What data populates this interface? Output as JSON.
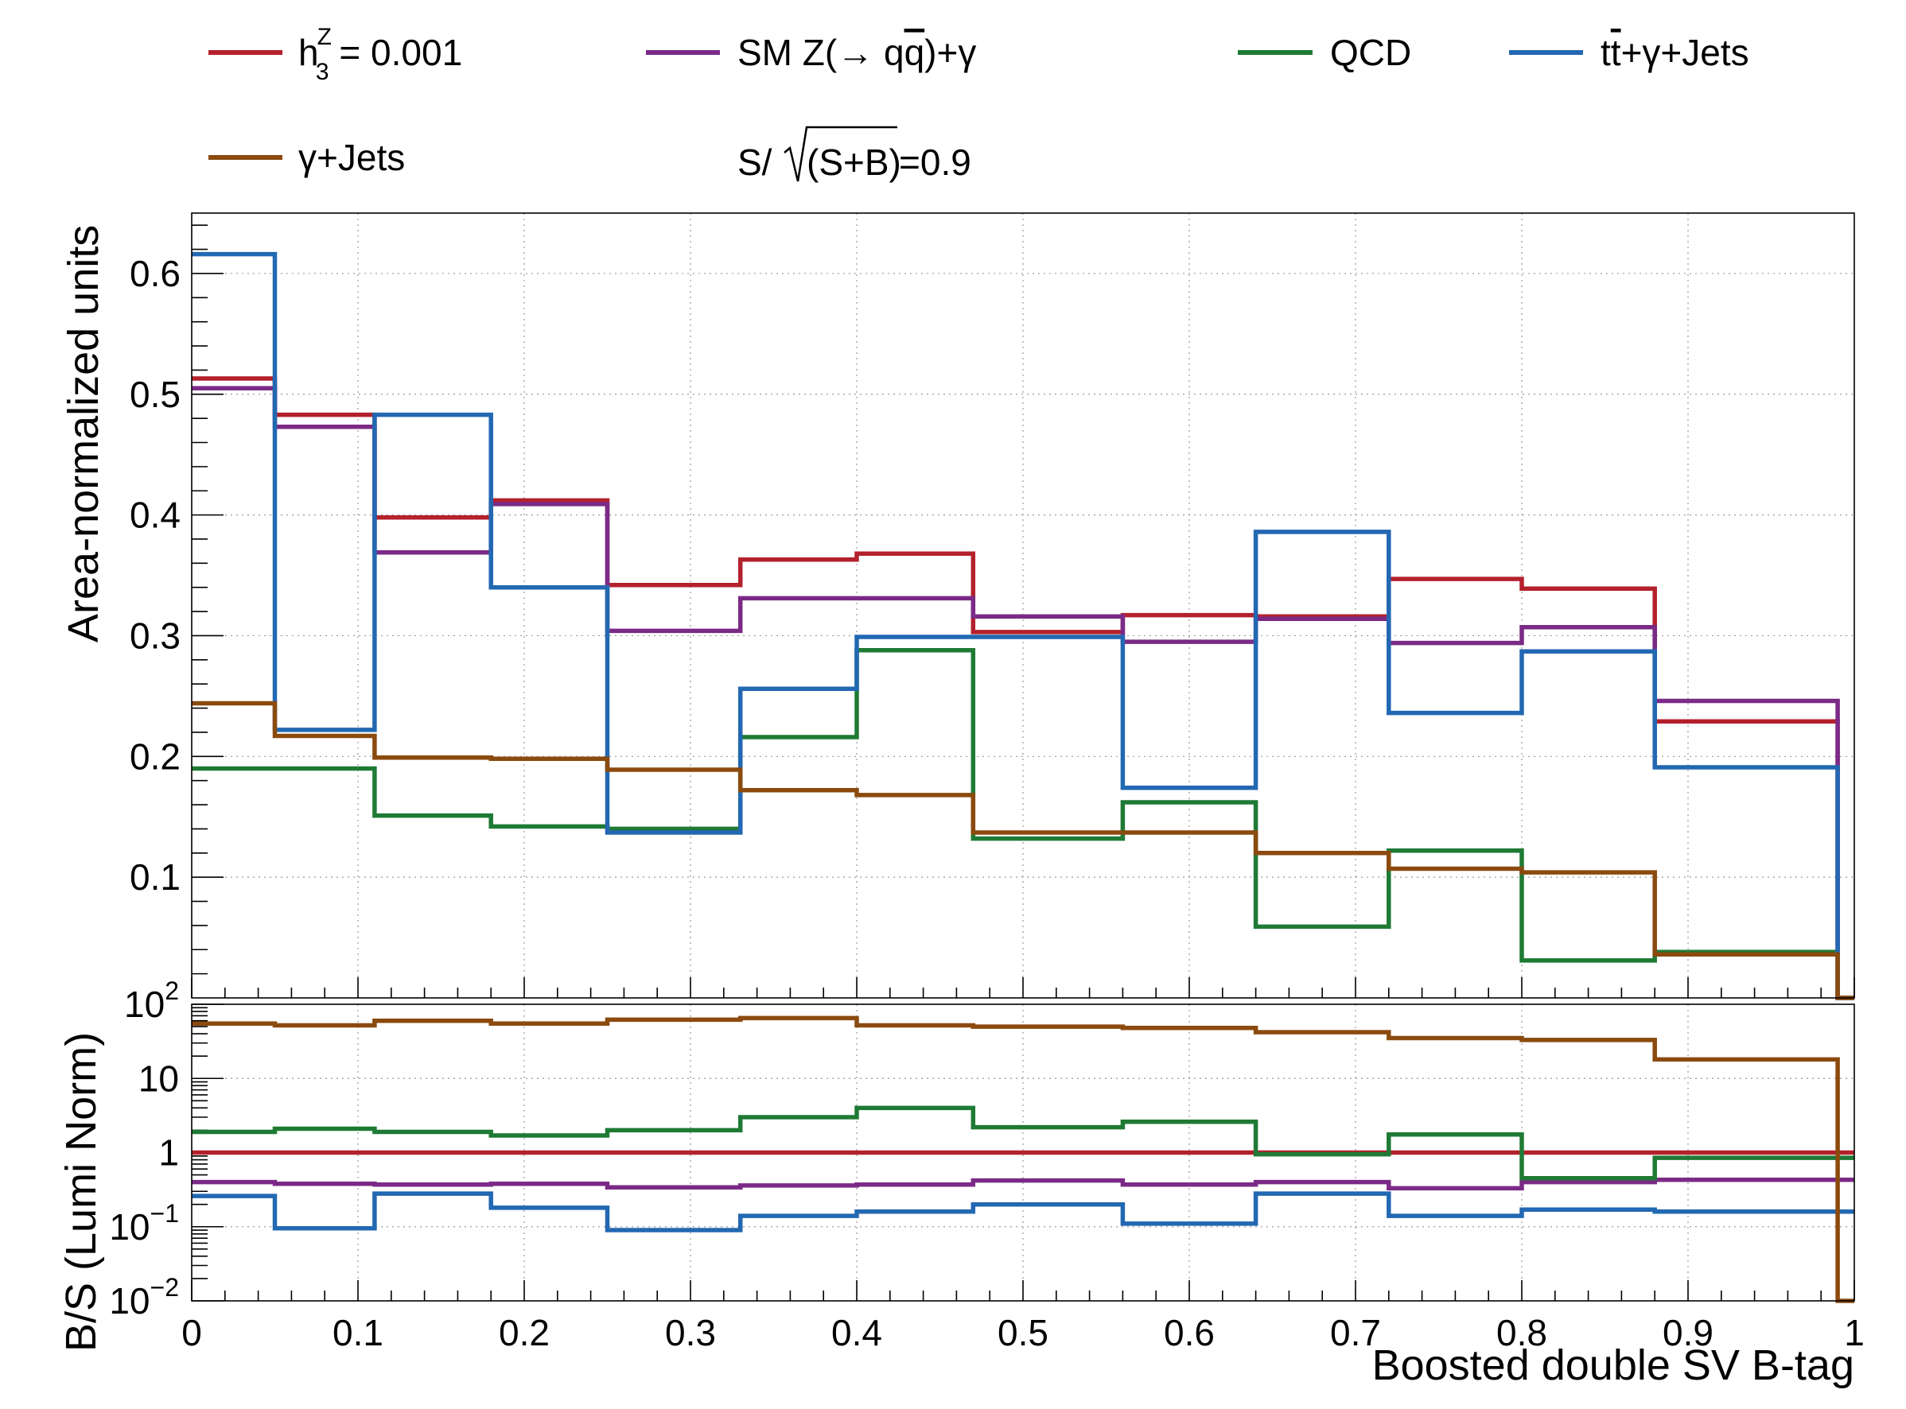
{
  "chart_data": [
    {
      "type": "line",
      "panel": "main",
      "drawstyle": "step histogram",
      "ylabel": "Area-normalized units",
      "xlim": [
        0,
        1
      ],
      "ylim": [
        0,
        0.65
      ],
      "yticks": [
        0.1,
        0.2,
        0.3,
        0.4,
        0.5,
        0.6
      ],
      "ytick_labels": [
        "0.1",
        "0.2",
        "0.3",
        "0.4",
        "0.5",
        "0.6"
      ],
      "grid": true,
      "bin_edges": [
        0,
        0.05,
        0.11,
        0.18,
        0.25,
        0.33,
        0.4,
        0.47,
        0.56,
        0.64,
        0.72,
        0.8,
        0.88,
        0.99,
        1.0
      ],
      "series": [
        {
          "key": "sig",
          "color": "#b3212c",
          "values": [
            0.513,
            0.483,
            0.398,
            0.412,
            0.342,
            0.363,
            0.368,
            0.303,
            0.317,
            0.316,
            0.347,
            0.339,
            0.229,
            0
          ]
        },
        {
          "key": "smz",
          "color": "#7b2a87",
          "values": [
            0.505,
            0.473,
            0.369,
            0.409,
            0.304,
            0.331,
            0.331,
            0.316,
            0.295,
            0.314,
            0.294,
            0.307,
            0.246,
            0
          ]
        },
        {
          "key": "qcd",
          "color": "#1e7a34",
          "values": [
            0.19,
            0.19,
            0.151,
            0.142,
            0.14,
            0.216,
            0.288,
            0.132,
            0.162,
            0.059,
            0.122,
            0.031,
            0.038,
            0
          ]
        },
        {
          "key": "tt",
          "color": "#2268b2",
          "values": [
            0.616,
            0.222,
            0.483,
            0.34,
            0.137,
            0.256,
            0.299,
            0.299,
            0.174,
            0.386,
            0.236,
            0.287,
            0.191,
            0
          ]
        },
        {
          "key": "gj",
          "color": "#8b4a0e",
          "values": [
            0.244,
            0.217,
            0.199,
            0.198,
            0.189,
            0.172,
            0.168,
            0.137,
            0.137,
            0.12,
            0.107,
            0.104,
            0.036,
            0
          ]
        }
      ]
    },
    {
      "type": "line",
      "panel": "ratio",
      "drawstyle": "step histogram",
      "ylabel": "B/S (Lumi Norm)",
      "xlabel": "Boosted double SV B-tag",
      "yscale": "log",
      "xlim": [
        0,
        1
      ],
      "ylim": [
        0.01,
        100
      ],
      "xticks": [
        0,
        0.1,
        0.2,
        0.3,
        0.4,
        0.5,
        0.6,
        0.7,
        0.8,
        0.9,
        1
      ],
      "xtick_labels": [
        "0",
        "0.1",
        "0.2",
        "0.3",
        "0.4",
        "0.5",
        "0.6",
        "0.7",
        "0.8",
        "0.9",
        "1"
      ],
      "ytick_labels": [
        {
          "value": 100,
          "base": "10",
          "exp": "2"
        },
        {
          "value": 10,
          "base": "10",
          "exp": ""
        },
        {
          "value": 1,
          "base": "1",
          "exp": ""
        },
        {
          "value": 0.1,
          "base": "10",
          "exp": "−1"
        },
        {
          "value": 0.01,
          "base": "10",
          "exp": "−2"
        }
      ],
      "grid": true,
      "bin_edges": [
        0,
        0.05,
        0.11,
        0.18,
        0.25,
        0.33,
        0.4,
        0.47,
        0.56,
        0.64,
        0.72,
        0.8,
        0.88,
        0.99,
        1.0
      ],
      "series": [
        {
          "key": "sig",
          "color": "#b3212c",
          "values": [
            1.0,
            1.0,
            1.0,
            1.0,
            1.0,
            1.0,
            1.0,
            1.0,
            1.0,
            1.0,
            1.0,
            1.0,
            1.0,
            1.0
          ]
        },
        {
          "key": "smz",
          "color": "#7b2a87",
          "values": [
            0.4,
            0.38,
            0.37,
            0.38,
            0.34,
            0.36,
            0.37,
            0.42,
            0.37,
            0.4,
            0.33,
            0.4,
            0.43,
            0.43
          ]
        },
        {
          "key": "qcd",
          "color": "#1e7a34",
          "values": [
            1.9,
            2.1,
            1.9,
            1.7,
            2.0,
            3.0,
            4.0,
            2.2,
            2.6,
            0.95,
            1.75,
            0.45,
            0.85,
            0.85
          ]
        },
        {
          "key": "tt",
          "color": "#2268b2",
          "values": [
            0.26,
            0.095,
            0.28,
            0.18,
            0.09,
            0.14,
            0.16,
            0.2,
            0.11,
            0.28,
            0.14,
            0.17,
            0.16,
            0.16
          ]
        },
        {
          "key": "gj",
          "color": "#8b4a0e",
          "values": [
            55,
            52,
            60,
            55,
            62,
            65,
            52,
            50,
            48,
            42,
            35,
            33,
            18,
            0.01
          ]
        }
      ]
    }
  ],
  "legend": [
    {
      "key": "sig",
      "color": "#b3212c",
      "label_main": "h",
      "label_sup": "Z",
      "label_sub": "3",
      "label_rest": " = 0.001"
    },
    {
      "key": "smz",
      "color": "#7b2a87",
      "label_main": "SM Z(→ q",
      "label_bar": "q",
      "label_rest": ")+γ"
    },
    {
      "key": "qcd",
      "color": "#1e7a34",
      "label_main": "QCD"
    },
    {
      "key": "tt",
      "color": "#2268b2",
      "label_main": "t",
      "label_bar": "t",
      "label_rest": "+γ+Jets"
    },
    {
      "key": "gj",
      "color": "#8b4a0e",
      "label_main": "γ+Jets"
    }
  ],
  "significance": {
    "prefix": "S/",
    "radicand": "(S+B)",
    "suffix": "=0.9"
  }
}
